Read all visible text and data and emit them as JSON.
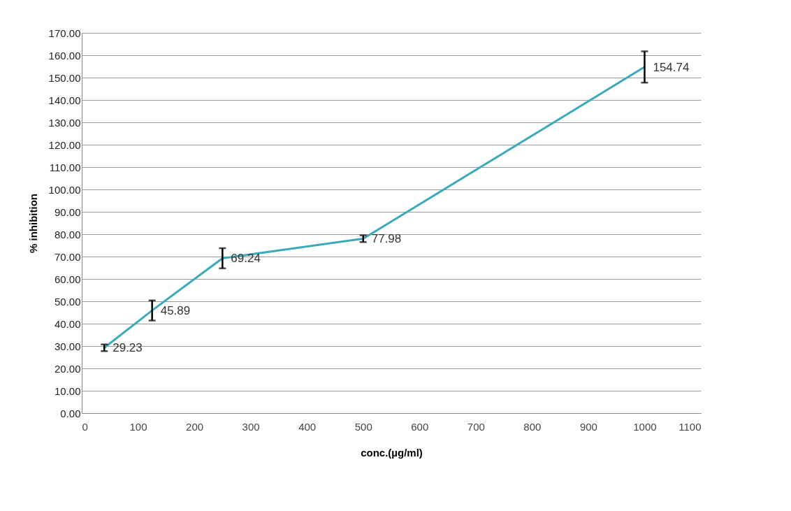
{
  "chart_data": {
    "type": "line",
    "xlabel": "conc.(µg/ml)",
    "ylabel": "% inhibition",
    "x": [
      40,
      125,
      250,
      500,
      1000
    ],
    "series": [
      {
        "color": "#3aa9b9",
        "values": [
          29.23,
          45.89,
          69.24,
          77.98,
          154.74
        ],
        "errors": [
          1.5,
          4.5,
          4.5,
          1.5,
          7
        ]
      }
    ],
    "data_labels": true,
    "grid": "y",
    "xlim": [
      0,
      1100
    ],
    "xticks": [
      0,
      100,
      200,
      300,
      400,
      500,
      600,
      700,
      800,
      900,
      1000,
      1100
    ],
    "ylim": [
      0,
      170
    ],
    "yticks": [
      {
        "value": 0,
        "label": "0.00"
      },
      {
        "value": 10,
        "label": "10.00"
      },
      {
        "value": 20,
        "label": "20.00"
      },
      {
        "value": 30,
        "label": "30.00"
      },
      {
        "value": 40,
        "label": "40.00"
      },
      {
        "value": 50,
        "label": "50.00"
      },
      {
        "value": 60,
        "label": "60.00"
      },
      {
        "value": 70,
        "label": "70.00"
      },
      {
        "value": 80,
        "label": "80.00"
      },
      {
        "value": 90,
        "label": "90.00"
      },
      {
        "value": 100,
        "label": "100.00"
      },
      {
        "value": 110,
        "label": "110.00"
      },
      {
        "value": 120,
        "label": "120.00"
      },
      {
        "value": 130,
        "label": "130.00"
      },
      {
        "value": 140,
        "label": "140.00"
      },
      {
        "value": 150,
        "label": "150.00"
      },
      {
        "value": 160,
        "label": "160.00"
      },
      {
        "value": 170,
        "label": "170.00"
      }
    ]
  }
}
